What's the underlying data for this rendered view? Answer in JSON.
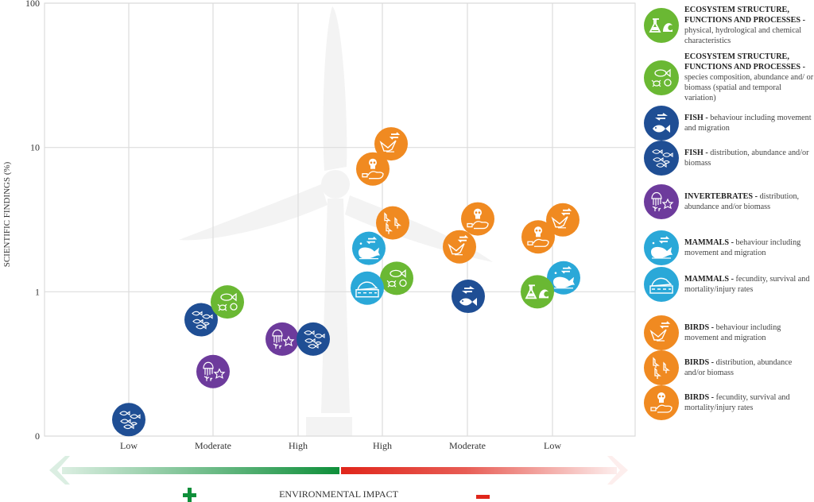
{
  "chart_data": {
    "type": "scatter",
    "title": "",
    "xlabel": "ENVIRONMENTAL IMPACT",
    "ylabel": "SCIENTIFIC FINDINGS (%)",
    "yscale": "log",
    "ylim": [
      0.1,
      100
    ],
    "y_ticks": [
      {
        "value": 100,
        "label": "100"
      },
      {
        "value": 10,
        "label": "10"
      },
      {
        "value": 1,
        "label": "1"
      },
      {
        "value": 0.1,
        "label": "0"
      }
    ],
    "categories": [
      "Low",
      "Moderate",
      "High",
      "High",
      "Moderate",
      "Low"
    ],
    "category_sides": [
      "positive",
      "positive",
      "positive",
      "negative",
      "negative",
      "negative"
    ],
    "impact_signs": {
      "positive": "+",
      "negative": "–"
    },
    "grid": true,
    "legend_position": "right",
    "colors": {
      "eco": "#6ab833",
      "fish": "#1f4e94",
      "invert": "#6d3b9c",
      "mammal": "#2aa8d8",
      "bird": "#f08a21",
      "positive": "#0f8f3a",
      "negative": "#e0261b"
    },
    "legend": [
      {
        "key": "eco_phys",
        "group": "eco",
        "icon": "flask-wave-icon",
        "title": "ECOSYSTEM STRUCTURE, FUNCTIONS AND PROCESSES -",
        "desc": "physical, hydrological and chemical characteristics"
      },
      {
        "key": "eco_species",
        "group": "eco",
        "icon": "fish-crab-shell-icon",
        "title": "ECOSYSTEM STRUCTURE, FUNCTIONS AND PROCESSES -",
        "desc": "species composition, abundance and/ or biomass (spatial and temporal variation)"
      },
      {
        "key": "fish_behav",
        "group": "fish",
        "icon": "fish-migration-icon",
        "title": "FISH -",
        "desc": "behaviour including movement and migration"
      },
      {
        "key": "fish_dist",
        "group": "fish",
        "icon": "fish-school-icon",
        "title": "FISH -",
        "desc": "distribution, abundance and/or biomass"
      },
      {
        "key": "invert_dist",
        "group": "invert",
        "icon": "jellyfish-star-icon",
        "title": "INVERTEBRATES -",
        "desc": "distribution, abundance and/or biomass"
      },
      {
        "key": "mammal_behav",
        "group": "mammal",
        "icon": "whale-migration-icon",
        "title": "MAMMALS -",
        "desc": "behaviour including movement and migration"
      },
      {
        "key": "mammal_fec",
        "group": "mammal",
        "icon": "whale-stranded-icon",
        "title": "MAMMALS -",
        "desc": "fecundity, survival and mortality/injury rates"
      },
      {
        "key": "bird_behav",
        "group": "bird",
        "icon": "bird-migration-icon",
        "title": "BIRDS -",
        "desc": "behaviour including movement and migration"
      },
      {
        "key": "bird_dist",
        "group": "bird",
        "icon": "birds-group-icon",
        "title": "BIRDS -",
        "desc": "distribution, abundance and/or biomass"
      },
      {
        "key": "bird_mort",
        "group": "bird",
        "icon": "skull-bird-icon",
        "title": "BIRDS -",
        "desc": "fecundity, survival and mortality/injury rates"
      }
    ],
    "points": [
      {
        "series": "fish_dist",
        "x": 0,
        "y": 0.13
      },
      {
        "series": "fish_dist",
        "x": 1,
        "y": 0.64
      },
      {
        "series": "eco_species",
        "x": 1,
        "y": 0.85
      },
      {
        "series": "invert_dist",
        "x": 1,
        "y": 0.28
      },
      {
        "series": "invert_dist",
        "x": 2,
        "y": 0.47
      },
      {
        "series": "fish_dist",
        "x": 2,
        "y": 0.47
      },
      {
        "series": "bird_behav",
        "x": 3,
        "y": 10.6
      },
      {
        "series": "bird_mort",
        "x": 3,
        "y": 7.1
      },
      {
        "series": "bird_dist",
        "x": 3,
        "y": 3.0
      },
      {
        "series": "mammal_behav",
        "x": 3,
        "y": 2.0
      },
      {
        "series": "eco_species",
        "x": 3,
        "y": 1.24
      },
      {
        "series": "mammal_fec",
        "x": 3,
        "y": 1.06
      },
      {
        "series": "bird_mort",
        "x": 4,
        "y": 3.2
      },
      {
        "series": "bird_behav",
        "x": 4,
        "y": 2.05
      },
      {
        "series": "fish_behav",
        "x": 4,
        "y": 0.93
      },
      {
        "series": "bird_behav",
        "x": 5,
        "y": 3.15
      },
      {
        "series": "bird_mort",
        "x": 5,
        "y": 2.4
      },
      {
        "series": "mammal_behav",
        "x": 5,
        "y": 1.25
      },
      {
        "series": "eco_phys",
        "x": 5,
        "y": 1.0
      }
    ]
  }
}
